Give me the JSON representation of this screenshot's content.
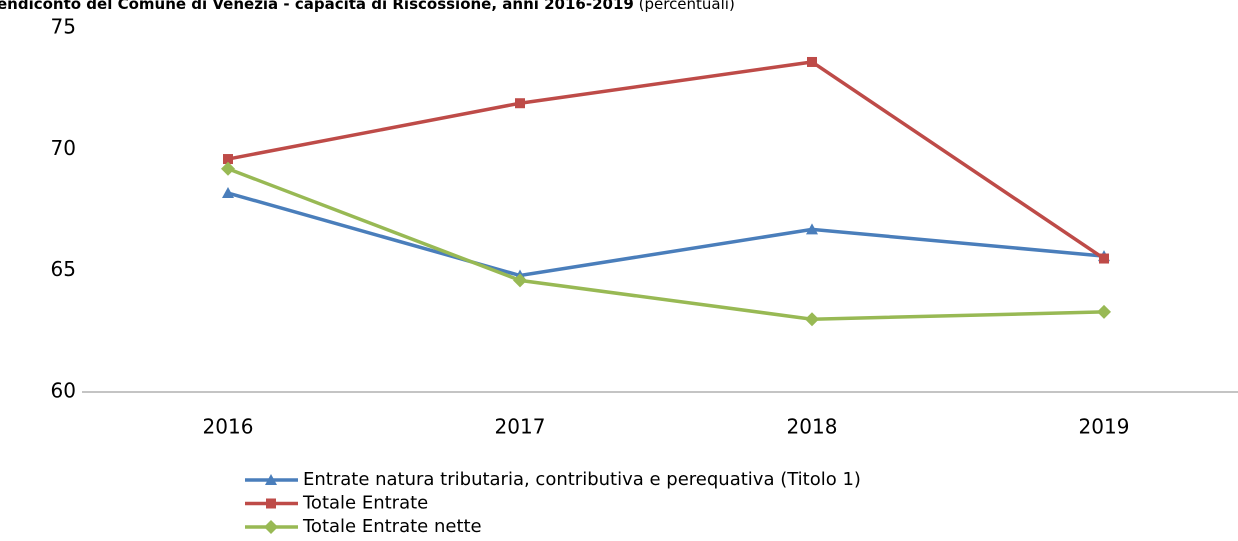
{
  "chart_data": {
    "type": "line",
    "title": "endiconto del Comune di Venezia - capacità di Riscossione, anni 2016-2019",
    "subtitle": "(percentuali)",
    "categories": [
      "2016",
      "2017",
      "2018",
      "2019"
    ],
    "series": [
      {
        "name": "Entrate natura tributaria, contributiva e perequativa (Titolo 1)",
        "color": "#4a7ebb",
        "marker": "triangle",
        "values": [
          68.2,
          64.8,
          66.7,
          65.6
        ]
      },
      {
        "name": "Totale Entrate",
        "color": "#be4b48",
        "marker": "square",
        "values": [
          69.6,
          71.9,
          73.6,
          65.5
        ]
      },
      {
        "name": "Totale Entrate nette",
        "color": "#98b954",
        "marker": "diamond",
        "values": [
          69.2,
          64.6,
          63.0,
          63.3
        ]
      }
    ],
    "ylim": [
      60,
      75
    ],
    "yticks": [
      60,
      65,
      70,
      75
    ],
    "grid": false
  }
}
